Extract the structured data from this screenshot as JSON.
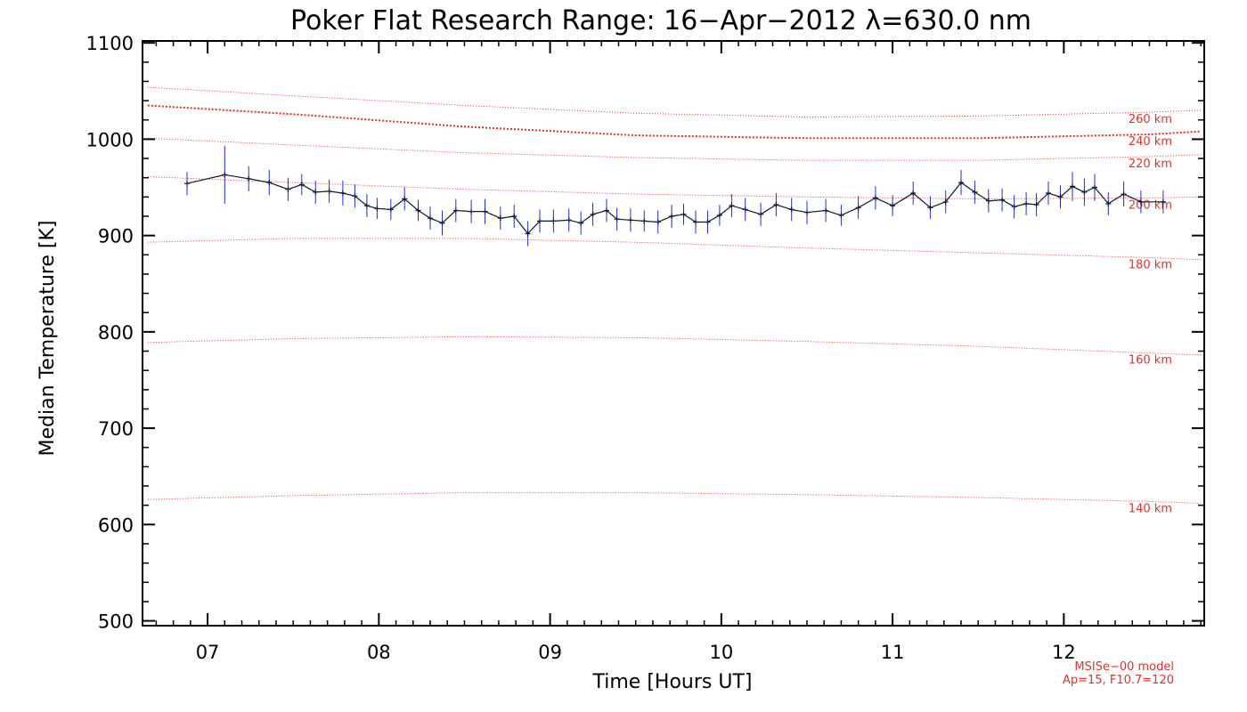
{
  "chart_data": {
    "type": "line",
    "title": "Poker Flat Research Range: 16−Apr−2012 λ=630.0 nm",
    "xlabel": "Time [Hours UT]",
    "ylabel": "Median Temperature [K]",
    "xlim": [
      6.62,
      12.82
    ],
    "ylim": [
      495,
      1102
    ],
    "x_ticks": [
      {
        "value": 7,
        "label": "07"
      },
      {
        "value": 8,
        "label": "08"
      },
      {
        "value": 9,
        "label": "09"
      },
      {
        "value": 10,
        "label": "10"
      },
      {
        "value": 11,
        "label": "11"
      },
      {
        "value": 12,
        "label": "12"
      }
    ],
    "y_ticks": [
      {
        "value": 500,
        "label": "500"
      },
      {
        "value": 600,
        "label": "600"
      },
      {
        "value": 700,
        "label": "700"
      },
      {
        "value": 800,
        "label": "800"
      },
      {
        "value": 900,
        "label": "900"
      },
      {
        "value": 1000,
        "label": "1000"
      },
      {
        "value": 1100,
        "label": "1100"
      }
    ],
    "grid": false,
    "series": [
      {
        "color": "#0a1a33",
        "errorbar_color": "#2a2ad8",
        "points": [
          [
            6.88,
            954,
            12
          ],
          [
            7.1,
            963,
            30
          ],
          [
            7.24,
            959,
            13
          ],
          [
            7.36,
            955,
            13
          ],
          [
            7.47,
            948,
            12
          ],
          [
            7.55,
            953,
            11
          ],
          [
            7.63,
            945,
            12
          ],
          [
            7.71,
            946,
            12
          ],
          [
            7.79,
            944,
            13
          ],
          [
            7.86,
            941,
            12
          ],
          [
            7.93,
            931,
            12
          ],
          [
            7.99,
            928,
            11
          ],
          [
            8.07,
            927,
            11
          ],
          [
            8.15,
            938,
            12
          ],
          [
            8.23,
            926,
            11
          ],
          [
            8.3,
            918,
            12
          ],
          [
            8.37,
            913,
            13
          ],
          [
            8.45,
            926,
            12
          ],
          [
            8.54,
            925,
            12
          ],
          [
            8.62,
            925,
            13
          ],
          [
            8.71,
            918,
            12
          ],
          [
            8.79,
            920,
            12
          ],
          [
            8.87,
            902,
            13
          ],
          [
            8.94,
            915,
            12
          ],
          [
            9.02,
            915,
            12
          ],
          [
            9.11,
            916,
            12
          ],
          [
            9.18,
            913,
            12
          ],
          [
            9.25,
            922,
            12
          ],
          [
            9.33,
            926,
            12
          ],
          [
            9.39,
            917,
            12
          ],
          [
            9.47,
            916,
            12
          ],
          [
            9.55,
            915,
            11
          ],
          [
            9.63,
            914,
            12
          ],
          [
            9.71,
            920,
            12
          ],
          [
            9.78,
            922,
            11
          ],
          [
            9.85,
            914,
            12
          ],
          [
            9.92,
            914,
            12
          ],
          [
            9.99,
            921,
            11
          ],
          [
            10.06,
            931,
            12
          ],
          [
            10.14,
            927,
            12
          ],
          [
            10.23,
            922,
            12
          ],
          [
            10.32,
            932,
            12
          ],
          [
            10.41,
            927,
            12
          ],
          [
            10.5,
            924,
            12
          ],
          [
            10.61,
            926,
            12
          ],
          [
            10.7,
            921,
            11
          ],
          [
            10.8,
            929,
            12
          ],
          [
            10.9,
            939,
            12
          ],
          [
            11.0,
            931,
            11
          ],
          [
            11.12,
            944,
            12
          ],
          [
            11.22,
            929,
            12
          ],
          [
            11.31,
            935,
            12
          ],
          [
            11.4,
            955,
            13
          ],
          [
            11.48,
            945,
            12
          ],
          [
            11.56,
            936,
            12
          ],
          [
            11.64,
            937,
            12
          ],
          [
            11.71,
            930,
            12
          ],
          [
            11.78,
            933,
            12
          ],
          [
            11.84,
            932,
            12
          ],
          [
            11.91,
            944,
            12
          ],
          [
            11.98,
            940,
            12
          ],
          [
            12.05,
            951,
            15
          ],
          [
            12.12,
            945,
            14
          ],
          [
            12.18,
            950,
            14
          ],
          [
            12.26,
            933,
            12
          ],
          [
            12.35,
            943,
            13
          ],
          [
            12.45,
            935,
            12
          ],
          [
            12.58,
            935,
            12
          ]
        ]
      }
    ],
    "model_curves": [
      {
        "label": "260 km",
        "color": "#e0302a",
        "style": "dotted",
        "points": [
          [
            6.65,
            1054
          ],
          [
            7.5,
            1045
          ],
          [
            8.5,
            1035
          ],
          [
            9.5,
            1027
          ],
          [
            10.5,
            1023
          ],
          [
            11.5,
            1024
          ],
          [
            12.5,
            1028
          ],
          [
            12.8,
            1030
          ]
        ]
      },
      {
        "label": "240 km",
        "color": "#e0302a",
        "style": "dotted-bold",
        "points": [
          [
            6.65,
            1035
          ],
          [
            7.5,
            1026
          ],
          [
            8.5,
            1013
          ],
          [
            9.5,
            1004
          ],
          [
            10.5,
            1001
          ],
          [
            11.5,
            1001
          ],
          [
            12.5,
            1005
          ],
          [
            12.8,
            1008
          ]
        ]
      },
      {
        "label": "220 km",
        "color": "#e0302a",
        "style": "dotted",
        "points": [
          [
            6.65,
            1001
          ],
          [
            7.5,
            994
          ],
          [
            8.5,
            986
          ],
          [
            9.5,
            981
          ],
          [
            10.5,
            978
          ],
          [
            11.5,
            978
          ],
          [
            12.5,
            982
          ],
          [
            12.8,
            984
          ]
        ]
      },
      {
        "label": "200 km",
        "color": "#e0302a",
        "style": "dotted",
        "points": [
          [
            6.65,
            961
          ],
          [
            7.5,
            955
          ],
          [
            8.5,
            948
          ],
          [
            9.5,
            943
          ],
          [
            10.5,
            940
          ],
          [
            11.5,
            938
          ],
          [
            12.5,
            939
          ],
          [
            12.8,
            940
          ]
        ]
      },
      {
        "label": "180 km",
        "color": "#e0302a",
        "style": "dotted",
        "points": [
          [
            6.65,
            893
          ],
          [
            7.5,
            897
          ],
          [
            8.5,
            897
          ],
          [
            9.5,
            893
          ],
          [
            10.5,
            887
          ],
          [
            11.5,
            882
          ],
          [
            12.5,
            877
          ],
          [
            12.8,
            875
          ]
        ]
      },
      {
        "label": "160 km",
        "color": "#e0302a",
        "style": "dotted",
        "points": [
          [
            6.65,
            789
          ],
          [
            7.5,
            793
          ],
          [
            8.5,
            795
          ],
          [
            9.5,
            794
          ],
          [
            10.5,
            790
          ],
          [
            11.5,
            785
          ],
          [
            12.5,
            778
          ],
          [
            12.8,
            776
          ]
        ]
      },
      {
        "label": "140 km",
        "color": "#e0302a",
        "style": "dotted",
        "points": [
          [
            6.65,
            626
          ],
          [
            7.5,
            630
          ],
          [
            8.5,
            633
          ],
          [
            9.5,
            633
          ],
          [
            10.5,
            631
          ],
          [
            11.5,
            628
          ],
          [
            12.5,
            624
          ],
          [
            12.8,
            622
          ]
        ]
      }
    ],
    "annotations": [
      "MSISe−00 model",
      "Ap=15, F10.7=120"
    ]
  }
}
